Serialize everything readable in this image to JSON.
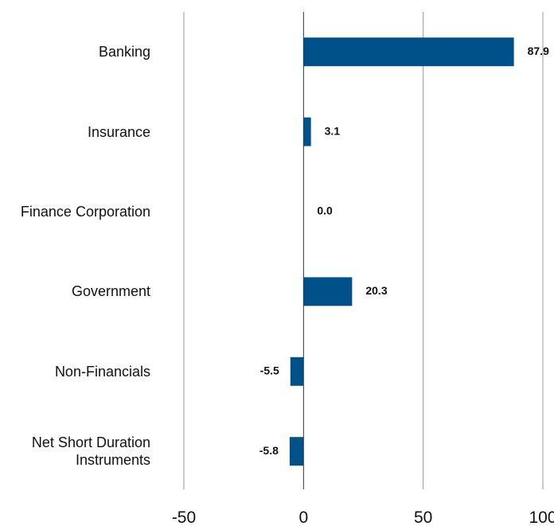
{
  "chart_data": {
    "type": "hbar",
    "categories": [
      "Banking",
      "Insurance",
      "Finance Corporation",
      "Government",
      "Non-Financials",
      "Net Short Duration\nInstruments"
    ],
    "values": [
      87.9,
      3.1,
      0,
      20.3,
      -5.5,
      -5.8
    ],
    "value_labels": [
      "87.9",
      "3.1",
      "0.0",
      "20.3",
      "-5.5",
      "-5.8"
    ],
    "color": "#00508a",
    "xlim": [
      -50,
      100
    ],
    "xticks": [
      -50,
      0,
      50,
      100
    ],
    "grid": true
  }
}
